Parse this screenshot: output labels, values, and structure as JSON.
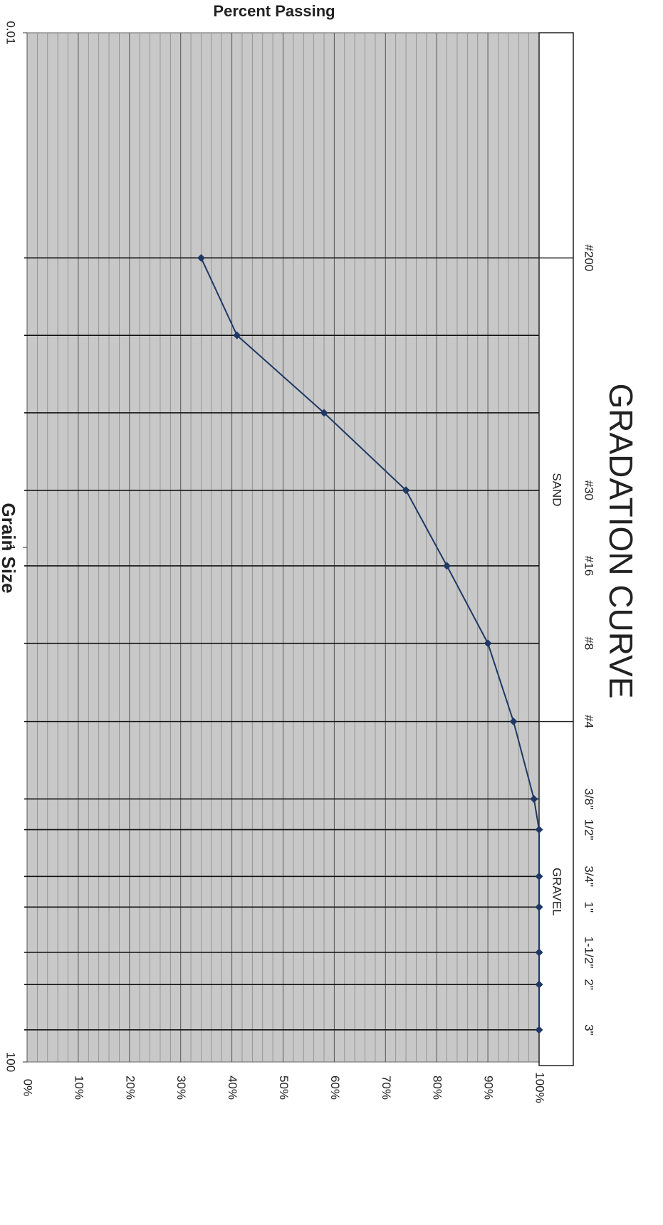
{
  "chart_data": {
    "type": "line",
    "title": "GRADATION CURVE",
    "x_label": "Grain Size",
    "y_label": "Percent Passing",
    "x": [
      0.075,
      0.15,
      0.3,
      0.6,
      1.18,
      2.36,
      4.75,
      9.5,
      12.5,
      19,
      25,
      37.5,
      50,
      75
    ],
    "sieve_labels": [
      "#200",
      null,
      null,
      "#30",
      "#16",
      "#8",
      "#4",
      "3/8\"",
      "1/2\"",
      "3/4\"",
      "1\"",
      "1-1/2\"",
      "2\"",
      "3\""
    ],
    "series": [
      {
        "name": "Percent Passing",
        "color": "#1f3864",
        "values": [
          34,
          41,
          58,
          74,
          82,
          90,
          95,
          99,
          100,
          100,
          100,
          100,
          100,
          100
        ]
      }
    ],
    "zones": [
      {
        "label": "SAND",
        "from": 0.075,
        "to": 4.75
      },
      {
        "label": "GRAVEL",
        "from": 4.75,
        "to": 100
      }
    ],
    "xlim": [
      0.01,
      100
    ],
    "xscale": "log",
    "xticks": [
      0.01,
      1,
      100
    ],
    "ylim": [
      0,
      100
    ],
    "yticks": [
      {
        "value": 0,
        "label": "0%"
      },
      {
        "value": 10,
        "label": "10%"
      },
      {
        "value": 20,
        "label": "20%"
      },
      {
        "value": 30,
        "label": "30%"
      },
      {
        "value": 40,
        "label": "40%"
      },
      {
        "value": 50,
        "label": "50%"
      },
      {
        "value": 60,
        "label": "60%"
      },
      {
        "value": 70,
        "label": "70%"
      },
      {
        "value": 80,
        "label": "80%"
      },
      {
        "value": 90,
        "label": "90%"
      },
      {
        "value": 100,
        "label": "100%"
      }
    ],
    "yminor_ticks": [
      2,
      4,
      6,
      8,
      12,
      14,
      16,
      18,
      22,
      24,
      26,
      28,
      32,
      34,
      36,
      38,
      42,
      44,
      46,
      48,
      52,
      54,
      56,
      58,
      62,
      64,
      66,
      68,
      72,
      74,
      76,
      78,
      82,
      84,
      86,
      88,
      92,
      94,
      96,
      98
    ],
    "grid": true
  }
}
